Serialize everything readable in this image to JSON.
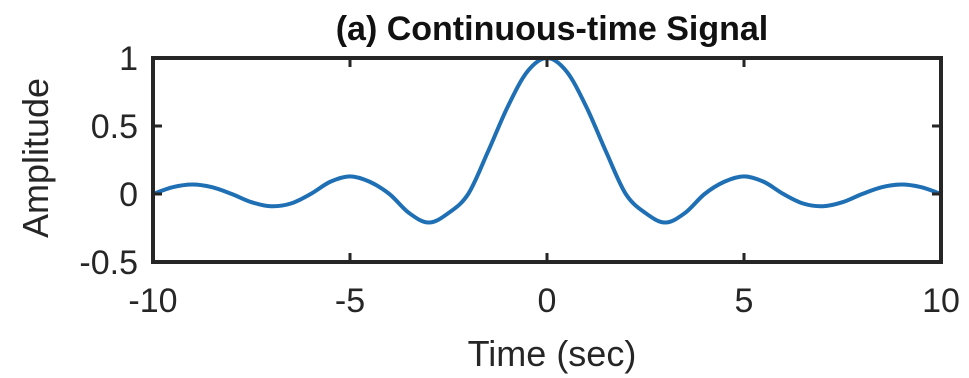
{
  "chart_data": {
    "type": "line",
    "title": "(a) Continuous-time Signal",
    "xlabel": "Time (sec)",
    "ylabel": "Amplitude",
    "xlim": [
      -10,
      10
    ],
    "ylim": [
      -0.5,
      1
    ],
    "xticks": [
      -10,
      -5,
      0,
      5,
      10
    ],
    "xtick_labels": [
      "-10",
      "-5",
      "0",
      "5",
      "10"
    ],
    "yticks": [
      -0.5,
      0,
      0.5,
      1
    ],
    "ytick_labels": [
      "-0.5",
      "0",
      "0.5",
      "1"
    ],
    "grid": false,
    "line_color": "#1f6fb4",
    "series": [
      {
        "x": [
          -10,
          -9.5,
          -9,
          -8.5,
          -8,
          -7.5,
          -7,
          -6.5,
          -6,
          -5.5,
          -5,
          -4.5,
          -4,
          -3.5,
          -3,
          -2.5,
          -2,
          -1.5,
          -1,
          -0.5,
          0,
          0.5,
          1,
          1.5,
          2,
          2.5,
          3,
          3.5,
          4,
          4.5,
          5,
          5.5,
          6,
          6.5,
          7,
          7.5,
          8,
          8.5,
          9,
          9.5,
          10
        ],
        "y": [
          0.0,
          0.05,
          0.07,
          0.05,
          0.0,
          -0.06,
          -0.09,
          -0.07,
          0.0,
          0.09,
          0.13,
          0.09,
          0.0,
          -0.14,
          -0.21,
          -0.14,
          0.0,
          0.31,
          0.64,
          0.9,
          1.0,
          0.9,
          0.64,
          0.31,
          0.0,
          -0.14,
          -0.21,
          -0.14,
          0.0,
          0.09,
          0.13,
          0.09,
          0.0,
          -0.07,
          -0.09,
          -0.06,
          0.0,
          0.05,
          0.07,
          0.05,
          0.0
        ]
      }
    ]
  }
}
